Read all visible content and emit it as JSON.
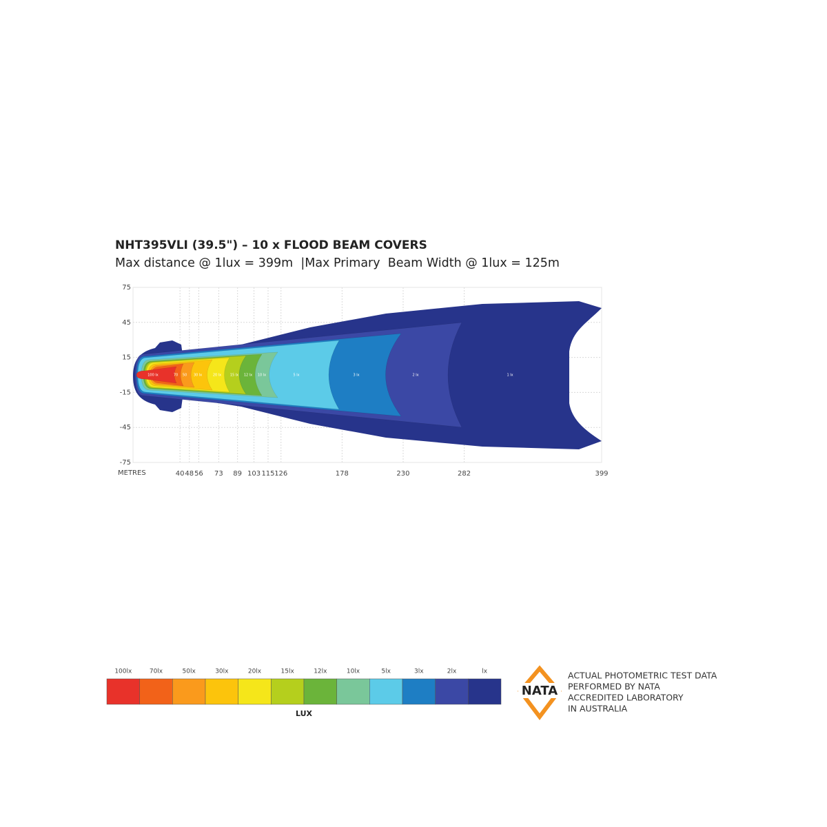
{
  "chart_data": {
    "type": "beam",
    "title": "NHT395VLI (39.5\") – 10 x FLOOD BEAM COVERS",
    "subtitle": "Max distance @ 1lux = 399m  |Max Primary  Beam Width @ 1lux = 125m",
    "xlabel": "METRES",
    "xlim": [
      0,
      399
    ],
    "xticks": [
      40,
      48,
      56,
      73,
      89,
      103,
      115,
      126,
      178,
      230,
      282,
      399
    ],
    "ylim": [
      -75,
      75
    ],
    "yticks": [
      75,
      45,
      15,
      -15,
      -45,
      -75
    ],
    "grid": true,
    "zone_labels": [
      "100 lx",
      "70",
      "50",
      "30 lx",
      "20 lx",
      "15 lx",
      "12 lx",
      "10 lx",
      "5 lx",
      "3 lx",
      "2 lx",
      "1 lx"
    ],
    "legend": {
      "title": "LUX",
      "items": [
        {
          "label": "100lx",
          "color": "#e8322a"
        },
        {
          "label": "70lx",
          "color": "#f26219"
        },
        {
          "label": "50lx",
          "color": "#fa9a1c"
        },
        {
          "label": "30lx",
          "color": "#fcc40c"
        },
        {
          "label": "20lx",
          "color": "#f5e61a"
        },
        {
          "label": "15lx",
          "color": "#b5cf1d"
        },
        {
          "label": "12lx",
          "color": "#6bb43a"
        },
        {
          "label": "10lx",
          "color": "#7ac79a"
        },
        {
          "label": "5lx",
          "color": "#5ccbe8"
        },
        {
          "label": "3lx",
          "color": "#1e7ec4"
        },
        {
          "label": "2lx",
          "color": "#3b48a5"
        },
        {
          "label": "lx",
          "color": "#27348b"
        }
      ]
    }
  },
  "badge": {
    "logo": "NATA",
    "lines": [
      "ACTUAL PHOTOMETRIC TEST DATA",
      "PERFORMED BY NATA",
      "ACCREDITED LABORATORY",
      "IN AUSTRALIA"
    ]
  }
}
